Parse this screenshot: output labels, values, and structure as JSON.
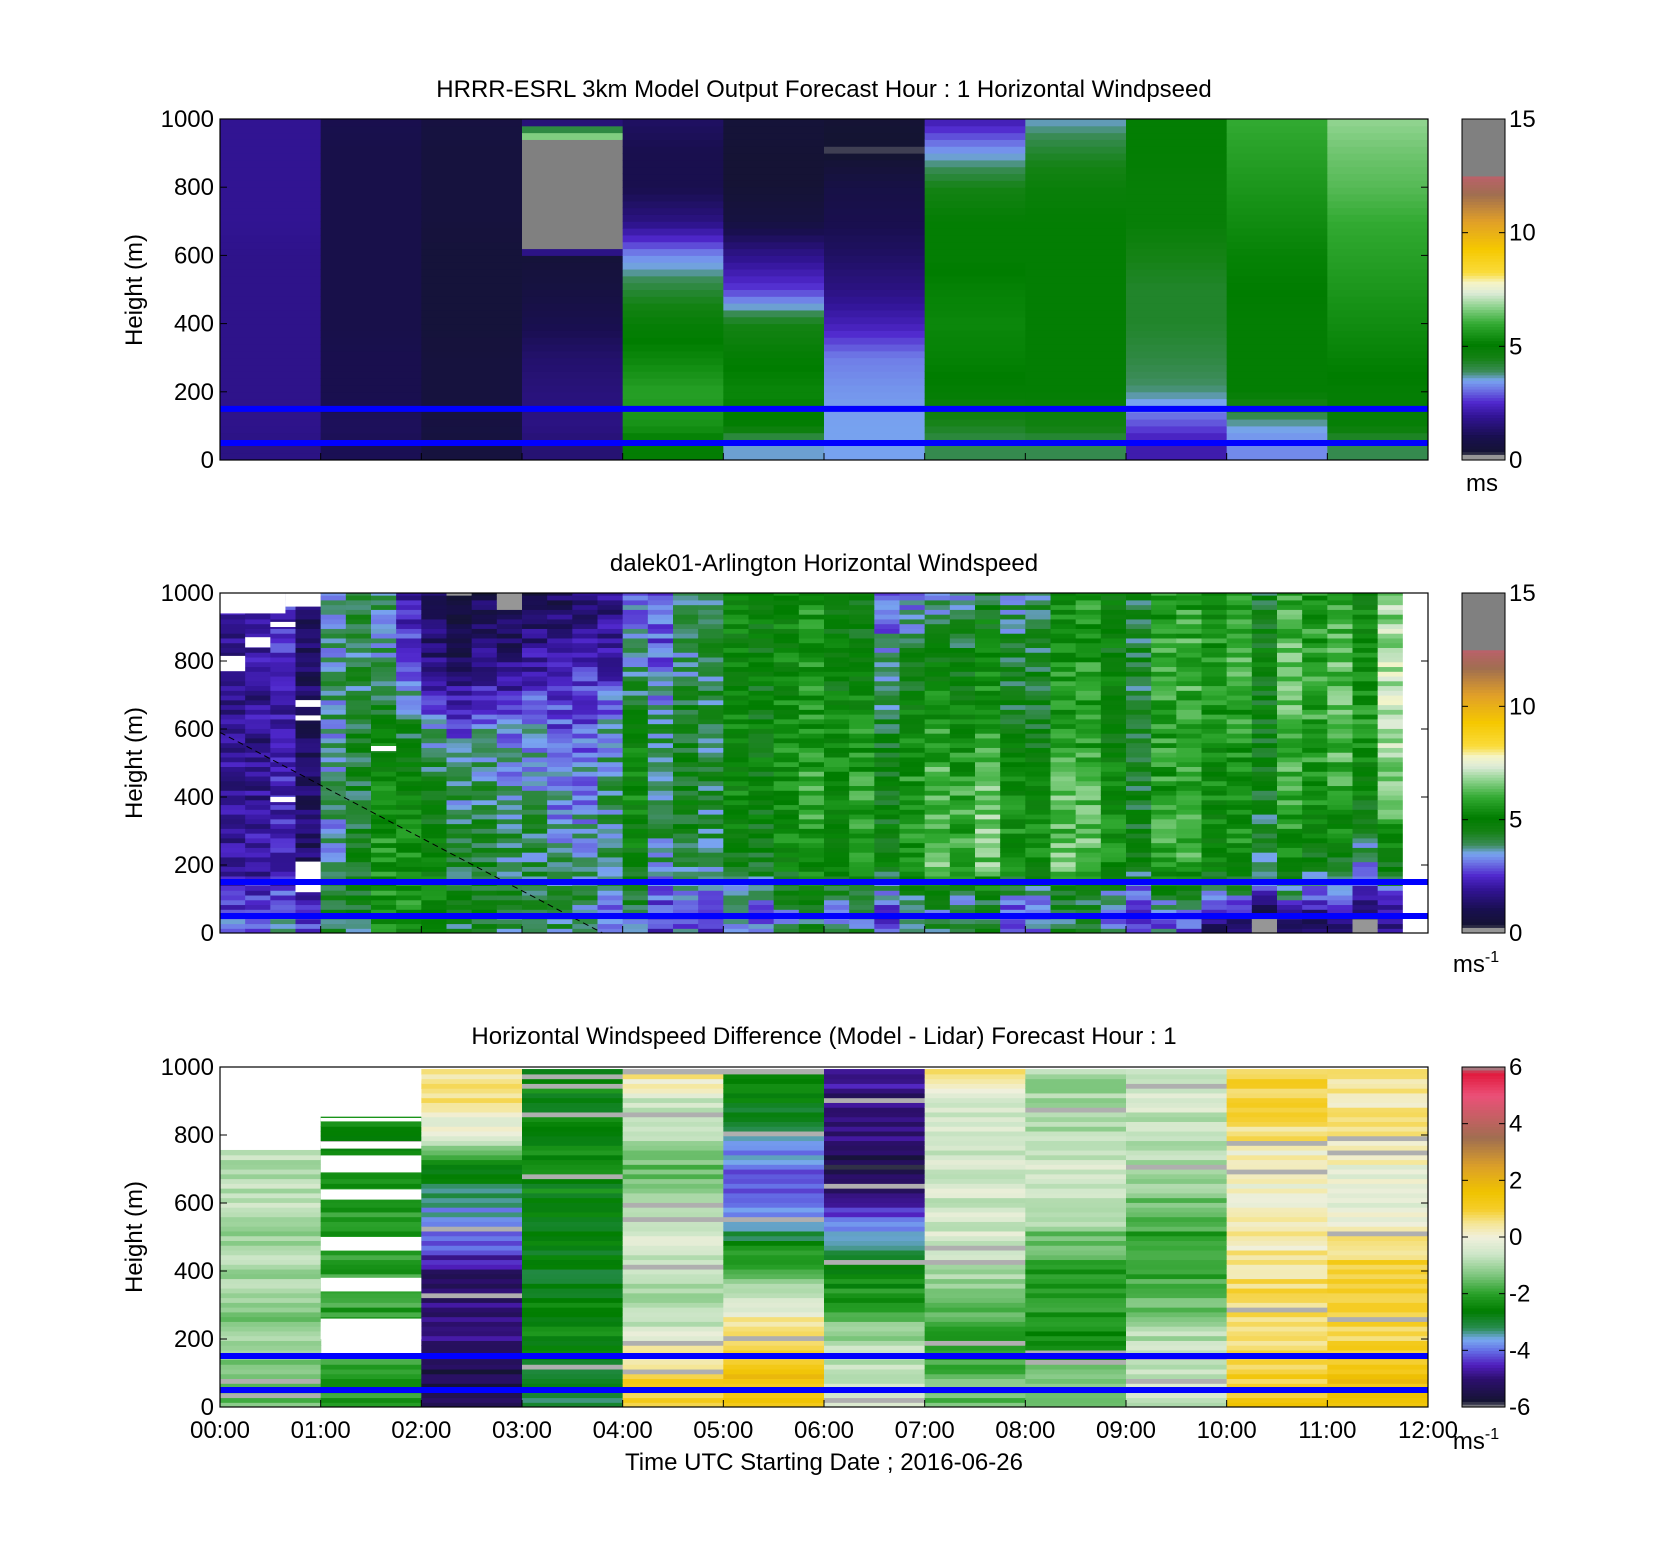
{
  "figure": {
    "xlabel": "Time UTC  Starting Date ; 2016-06-26",
    "x_tick_labels": [
      "00:00",
      "01:00",
      "02:00",
      "03:00",
      "04:00",
      "05:00",
      "06:00",
      "07:00",
      "08:00",
      "09:00",
      "10:00",
      "11:00",
      "12:00"
    ],
    "reference_line_color": "#0000ff",
    "reference_heights_m": [
      50,
      150
    ]
  },
  "chart_data": [
    {
      "type": "heatmap",
      "title": "HRRR-ESRL 3km Model Output   Forecast Hour : 1 Horizontal Windpseed",
      "ylabel": "Height (m)",
      "xlim": [
        0,
        12
      ],
      "ylim": [
        0,
        1000
      ],
      "y_ticks": [
        0,
        200,
        400,
        600,
        800,
        1000
      ],
      "colorbar": {
        "label": "ms",
        "superscript": "",
        "range": [
          0,
          15
        ],
        "ticks": [
          0,
          5,
          10,
          15
        ]
      },
      "hours": [
        0,
        1,
        2,
        3,
        4,
        5,
        6,
        7,
        8,
        9,
        10,
        11
      ],
      "heights_m": [
        1000,
        900,
        800,
        700,
        600,
        500,
        400,
        300,
        200,
        100,
        50
      ],
      "speed_ms": [
        [
          1.9,
          1.0,
          0.7,
          0.3,
          1.3,
          0.5,
          0.4,
          2.2,
          3.6,
          5.0,
          6.0,
          6.8
        ],
        [
          1.9,
          0.9,
          0.6,
          13.0,
          1.0,
          0.4,
          0.3,
          3.5,
          4.3,
          5.0,
          5.8,
          6.5
        ],
        [
          1.9,
          0.9,
          0.6,
          13.0,
          1.0,
          0.4,
          0.8,
          4.5,
          4.8,
          4.9,
          5.6,
          6.3
        ],
        [
          1.9,
          0.9,
          0.6,
          13.0,
          1.7,
          0.7,
          1.0,
          5.0,
          5.0,
          4.9,
          5.4,
          6.0
        ],
        [
          1.8,
          0.9,
          0.5,
          0.5,
          3.3,
          1.8,
          1.3,
          5.0,
          5.0,
          4.5,
          5.2,
          5.8
        ],
        [
          1.8,
          0.9,
          0.5,
          0.7,
          4.2,
          2.7,
          1.7,
          5.2,
          5.0,
          4.3,
          5.1,
          5.6
        ],
        [
          1.8,
          0.9,
          0.5,
          1.0,
          4.9,
          4.5,
          2.3,
          5.3,
          5.0,
          4.3,
          5.0,
          5.4
        ],
        [
          1.8,
          1.0,
          0.6,
          1.4,
          5.3,
          5.0,
          3.2,
          5.2,
          5.0,
          4.1,
          5.0,
          5.2
        ],
        [
          1.8,
          1.0,
          0.6,
          1.6,
          5.8,
          5.3,
          3.4,
          5.0,
          5.0,
          3.8,
          5.0,
          5.0
        ],
        [
          1.8,
          1.2,
          0.7,
          1.7,
          5.5,
          5.0,
          3.5,
          4.4,
          4.6,
          2.8,
          3.6,
          4.9
        ],
        [
          1.7,
          1.1,
          0.6,
          1.5,
          5.0,
          3.6,
          3.5,
          4.0,
          4.0,
          2.2,
          3.3,
          4.0
        ]
      ]
    },
    {
      "type": "heatmap",
      "title": "dalek01-Arlington  Horizontal Windspeed",
      "ylabel": "Height (m)",
      "xlim": [
        0,
        12
      ],
      "ylim": [
        0,
        1000
      ],
      "y_ticks": [
        0,
        200,
        400,
        600,
        800,
        1000
      ],
      "colorbar": {
        "label": "ms",
        "superscript": "-1",
        "range": [
          0,
          15
        ],
        "ticks": [
          0,
          5,
          10,
          15
        ]
      },
      "time_bin_h": 0.25,
      "bins": 47,
      "time_anchors_h": [
        0,
        1,
        1.25,
        2,
        3,
        3.5,
        4,
        5,
        6,
        7,
        8,
        9,
        10,
        11,
        11.75
      ],
      "height_anchors_m": [
        1000,
        800,
        600,
        400,
        200,
        100,
        50,
        0
      ],
      "speed_ms_at_anchors": [
        [
          2.0,
          1.5,
          5.0,
          1.0,
          1.5,
          2.0,
          2.5,
          5.0,
          5.0,
          2.5,
          4.5,
          5.0,
          5.0,
          5.5,
          6.0
        ],
        [
          1.8,
          1.5,
          5.0,
          1.5,
          2.5,
          3.0,
          3.0,
          5.0,
          5.0,
          4.0,
          5.0,
          5.0,
          5.5,
          6.0,
          6.5
        ],
        [
          1.6,
          1.4,
          5.0,
          3.5,
          4.0,
          3.5,
          4.5,
          5.0,
          5.2,
          5.0,
          5.0,
          5.0,
          5.2,
          6.0,
          6.5
        ],
        [
          1.6,
          1.4,
          4.8,
          4.5,
          4.5,
          4.0,
          4.8,
          5.0,
          5.5,
          5.5,
          6.0,
          5.2,
          5.0,
          5.5,
          5.8
        ],
        [
          1.8,
          1.6,
          5.0,
          5.0,
          4.8,
          4.5,
          4.5,
          4.5,
          5.0,
          5.5,
          6.0,
          5.5,
          5.0,
          4.5,
          4.0
        ],
        [
          2.2,
          2.0,
          5.0,
          5.0,
          5.0,
          5.0,
          4.0,
          3.5,
          4.0,
          3.5,
          4.0,
          3.5,
          3.0,
          2.5,
          2.0
        ],
        [
          2.5,
          2.5,
          4.8,
          4.8,
          4.8,
          4.8,
          3.5,
          3.0,
          3.5,
          3.0,
          3.5,
          3.0,
          1.5,
          1.5,
          1.2
        ],
        [
          3.0,
          3.0,
          4.5,
          4.5,
          4.5,
          4.5,
          3.5,
          3.5,
          4.0,
          3.5,
          4.0,
          3.5,
          1.0,
          1.0,
          0.8
        ]
      ],
      "gaps": [
        {
          "t0_h": 0.0,
          "t1_h": 0.65,
          "z0_m": 940,
          "z1_m": 1000
        },
        {
          "t0_h": 0.65,
          "t1_h": 1.0,
          "z0_m": 960,
          "z1_m": 1000
        },
        {
          "t0_h": 0.0,
          "t1_h": 0.25,
          "z0_m": 770,
          "z1_m": 815
        },
        {
          "t0_h": 0.25,
          "t1_h": 0.5,
          "z0_m": 840,
          "z1_m": 870
        },
        {
          "t0_h": 0.5,
          "t1_h": 0.75,
          "z0_m": 900,
          "z1_m": 915
        },
        {
          "t0_h": 0.75,
          "t1_h": 1.0,
          "z0_m": 625,
          "z1_m": 640
        },
        {
          "t0_h": 0.75,
          "t1_h": 1.0,
          "z0_m": 665,
          "z1_m": 685
        },
        {
          "t0_h": 0.75,
          "t1_h": 1.0,
          "z0_m": 120,
          "z1_m": 210
        },
        {
          "t0_h": 0.5,
          "t1_h": 0.75,
          "z0_m": 385,
          "z1_m": 400
        },
        {
          "t0_h": 1.5,
          "t1_h": 1.75,
          "z0_m": 535,
          "z1_m": 550
        }
      ],
      "diagonal_line": {
        "from": [
          0,
          590
        ],
        "to": [
          3.8,
          0
        ]
      }
    },
    {
      "type": "heatmap",
      "title": "Horizontal Windspeed Difference (Model - Lidar) Forecast Hour : 1",
      "xlabel": "Time UTC  Starting Date ; 2016-06-26",
      "ylabel": "Height (m)",
      "xlim": [
        0,
        12
      ],
      "ylim": [
        0,
        1000
      ],
      "y_ticks": [
        0,
        200,
        400,
        600,
        800,
        1000
      ],
      "colorbar": {
        "label": "ms",
        "superscript": "-1",
        "range": [
          -6,
          6
        ],
        "ticks": [
          -6,
          -4,
          -2,
          0,
          2,
          4,
          6
        ]
      },
      "hours": [
        0,
        1,
        2,
        3,
        4,
        5,
        6,
        7,
        8,
        9,
        10,
        11
      ],
      "heights_m": [
        1000,
        900,
        800,
        700,
        600,
        500,
        400,
        300,
        200,
        100,
        50
      ],
      "diff_ms": [
        [
          null,
          null,
          0.5,
          -2.5,
          0.8,
          -2.0,
          -4.5,
          0.5,
          -1.0,
          -0.5,
          1.0,
          0.5
        ],
        [
          null,
          null,
          0.5,
          -2.5,
          -0.5,
          -2.5,
          -5.0,
          -0.3,
          -1.0,
          -0.5,
          1.0,
          0.5
        ],
        [
          null,
          -2.5,
          -0.3,
          -2.5,
          -1.0,
          -3.5,
          -5.0,
          -0.5,
          -0.8,
          -0.8,
          0.5,
          0.3
        ],
        [
          -0.8,
          -2.5,
          -2.5,
          -2.5,
          -1.5,
          -4.0,
          -5.5,
          -0.5,
          -0.5,
          -1.0,
          0.0,
          0.0
        ],
        [
          -0.8,
          -2.0,
          -3.5,
          -2.5,
          -1.0,
          -4.0,
          -4.5,
          -0.5,
          -0.5,
          -1.5,
          0.0,
          -0.3
        ],
        [
          -1.0,
          -2.0,
          -4.0,
          -2.7,
          -0.5,
          -3.0,
          -3.5,
          -0.5,
          -1.5,
          -2.0,
          0.3,
          0.5
        ],
        [
          -1.0,
          -2.0,
          -5.0,
          -2.8,
          -0.8,
          -1.5,
          -2.5,
          -1.0,
          -2.0,
          -2.0,
          0.5,
          1.0
        ],
        [
          -1.2,
          -2.0,
          -5.0,
          -2.5,
          -1.0,
          -0.3,
          -2.0,
          -1.5,
          -2.0,
          -1.5,
          0.8,
          1.0
        ],
        [
          -1.2,
          null,
          -5.0,
          -2.5,
          -0.2,
          1.0,
          -1.0,
          -2.3,
          -2.5,
          -0.8,
          0.8,
          1.0
        ],
        [
          -1.2,
          -2.0,
          -5.5,
          -3.0,
          1.0,
          1.5,
          -0.5,
          -1.5,
          -1.5,
          -0.5,
          1.0,
          1.5
        ],
        [
          -1.5,
          -2.0,
          -5.5,
          -3.0,
          1.0,
          1.5,
          -0.5,
          -1.5,
          -1.5,
          -0.5,
          1.2,
          1.5
        ]
      ]
    }
  ]
}
